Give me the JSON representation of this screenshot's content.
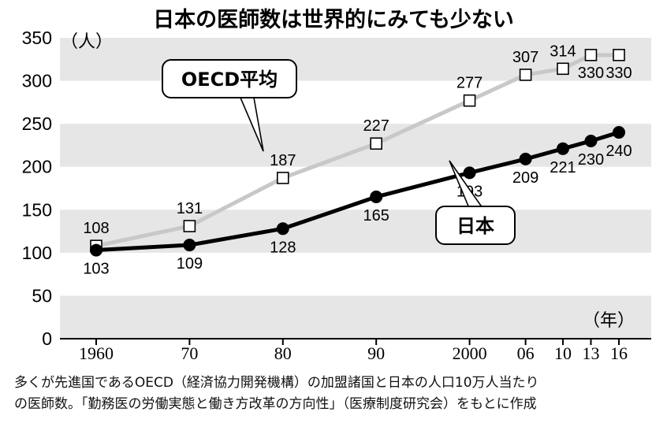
{
  "title": "日本の医師数は世界的にみても少ない",
  "y_unit": "（人）",
  "x_unit": "（年）",
  "notes": [
    "多くが先進国であるOECD（経済協力開発機構）の加盟諸国と日本の人口10万人当たり",
    "の医師数。「勤務医の労働実態と働き方改革の方向性」（医療制度研究会）をもとに作成"
  ],
  "chart_data": {
    "type": "line",
    "title": "日本の医師数は世界的にみても少ない",
    "ylabel": "（人）",
    "xlabel": "（年）",
    "ylim": [
      0,
      350
    ],
    "yticks": [
      0,
      50,
      100,
      150,
      200,
      250,
      300,
      350
    ],
    "categories": [
      "1960",
      "70",
      "80",
      "90",
      "2000",
      "06",
      "10",
      "13",
      "16"
    ],
    "years": [
      1960,
      1970,
      1980,
      1990,
      2000,
      2006,
      2010,
      2013,
      2016
    ],
    "grid": "alternating horizontal bands",
    "series": [
      {
        "name": "OECD平均",
        "marker": "open-square",
        "color": "#c8c8c8",
        "values": [
          108,
          131,
          187,
          227,
          277,
          307,
          314,
          330,
          330
        ]
      },
      {
        "name": "日本",
        "marker": "filled-circle",
        "color": "#000000",
        "values": [
          103,
          109,
          128,
          165,
          193,
          209,
          221,
          230,
          240
        ]
      }
    ]
  }
}
